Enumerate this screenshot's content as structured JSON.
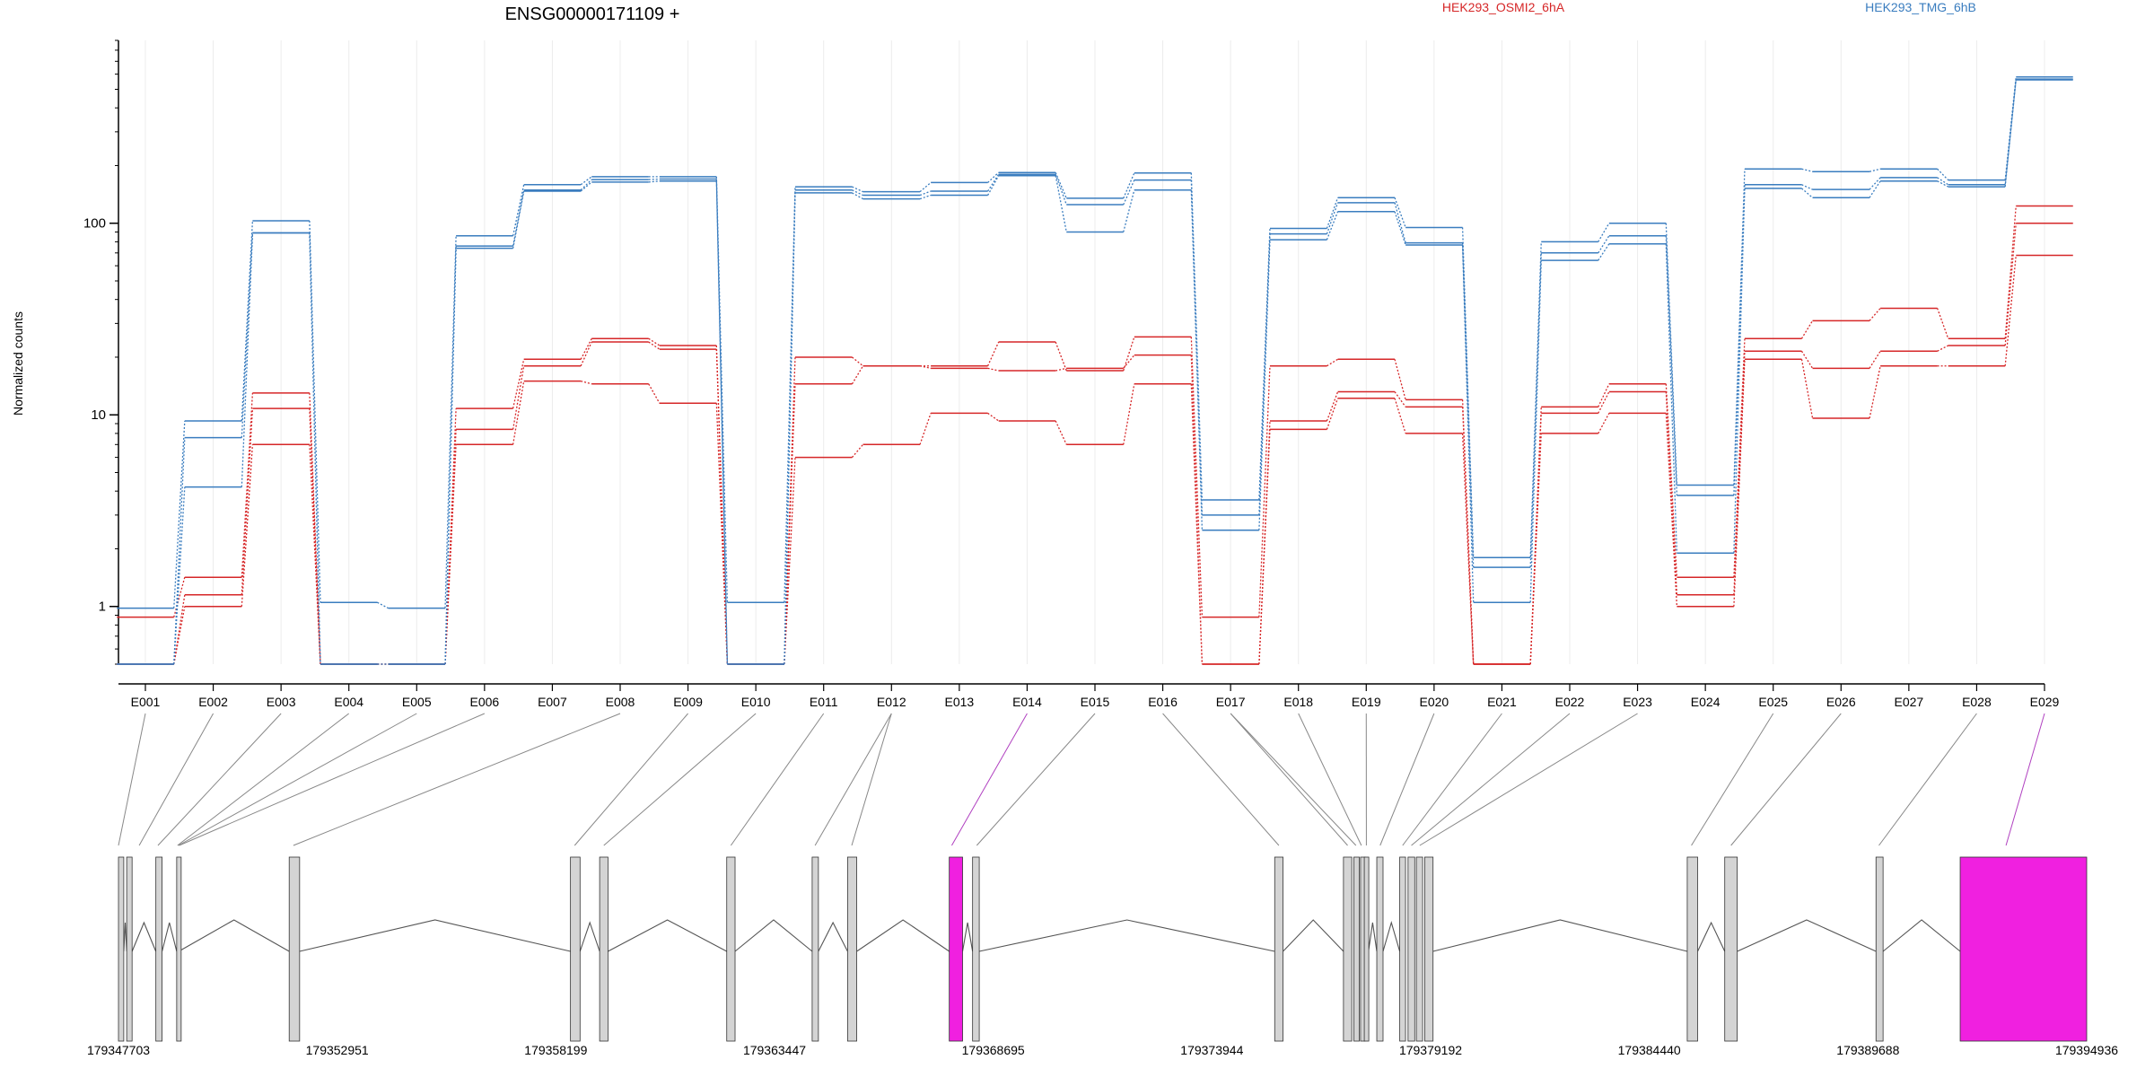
{
  "chart_data": {
    "type": "line",
    "title": "ENSG00000171109 +",
    "ylabel": "Normalized counts",
    "yscale": "log",
    "ylim": [
      0.5,
      900
    ],
    "yticks": [
      {
        "value": 1,
        "label": "1"
      },
      {
        "value": 10,
        "label": "10"
      },
      {
        "value": 100,
        "label": "100"
      }
    ],
    "categories": [
      "E001",
      "E002",
      "E003",
      "E004",
      "E005",
      "E006",
      "E007",
      "E008",
      "E009",
      "E010",
      "E011",
      "E012",
      "E013",
      "E014",
      "E015",
      "E016",
      "E017",
      "E018",
      "E019",
      "E020",
      "E021",
      "E022",
      "E023",
      "E024",
      "E025",
      "E026",
      "E027",
      "E028",
      "E029"
    ],
    "legend": [
      {
        "label": "HEK293_OSMI2_6hA",
        "color": "#d62728"
      },
      {
        "label": "HEK293_TMG_6hB",
        "color": "#3a7dbf"
      }
    ],
    "series": [
      {
        "group": "HEK293_OSMI2_6hA",
        "color": "#d62728",
        "values": [
          0.88,
          1.42,
          13.0,
          0.5,
          0.5,
          10.8,
          19.5,
          25.0,
          23.0,
          0.5,
          20.0,
          18.0,
          18.0,
          24.0,
          17.0,
          25.5,
          0.88,
          18.0,
          19.5,
          12.0,
          0.5,
          11.0,
          14.5,
          1.42,
          25.0,
          31.0,
          36.0,
          25.0,
          123
        ]
      },
      {
        "group": "HEK293_OSMI2_6hA",
        "color": "#d62728",
        "values": [
          0.5,
          1.15,
          10.8,
          0.5,
          0.5,
          8.4,
          18.0,
          24.0,
          22.0,
          0.5,
          14.5,
          18.0,
          17.5,
          17.0,
          17.5,
          20.5,
          0.5,
          9.3,
          13.2,
          11.0,
          0.5,
          10.2,
          13.2,
          1.15,
          21.5,
          17.5,
          21.5,
          23.0,
          100
        ]
      },
      {
        "group": "HEK293_OSMI2_6hA",
        "color": "#d62728",
        "values": [
          0.5,
          1.0,
          7.0,
          0.5,
          0.5,
          7.0,
          15.0,
          14.5,
          11.5,
          0.5,
          6.0,
          7.0,
          10.2,
          9.3,
          7.0,
          14.5,
          0.5,
          8.4,
          12.2,
          8.0,
          0.5,
          8.0,
          10.2,
          1.0,
          19.5,
          9.6,
          18.0,
          18.0,
          68
        ]
      },
      {
        "group": "HEK293_TMG_6hB",
        "color": "#3a7dbf",
        "values": [
          0.98,
          9.3,
          103,
          1.05,
          0.98,
          86,
          159,
          175,
          175,
          1.05,
          155,
          146,
          163,
          184,
          135,
          183,
          3.6,
          94,
          136,
          95,
          1.8,
          80,
          100,
          4.3,
          192,
          186,
          192,
          168,
          580
        ]
      },
      {
        "group": "HEK293_TMG_6hB",
        "color": "#3a7dbf",
        "values": [
          0.5,
          7.6,
          89,
          0.5,
          0.5,
          76,
          149,
          169,
          170,
          0.5,
          149,
          140,
          147,
          180,
          125,
          168,
          3.0,
          88,
          128,
          79,
          1.6,
          70,
          86,
          3.8,
          159,
          150,
          173,
          159,
          565
        ]
      },
      {
        "group": "HEK293_TMG_6hB",
        "color": "#3a7dbf",
        "values": [
          0.5,
          4.2,
          89,
          0.5,
          0.5,
          74,
          147,
          164,
          166,
          0.5,
          144,
          134,
          140,
          177,
          90,
          149,
          2.5,
          82,
          115,
          77,
          1.05,
          64,
          78,
          1.9,
          152,
          136,
          166,
          155,
          560
        ]
      }
    ],
    "gene_model": {
      "coordinate_labels": [
        "179347703",
        "179352951",
        "179358199",
        "179363447",
        "179368695",
        "179373944",
        "179379192",
        "179384440",
        "179389688",
        "179394936"
      ],
      "highlight_color": "#f020e0",
      "highlighted_exons": [
        "E014",
        "E029"
      ]
    }
  }
}
